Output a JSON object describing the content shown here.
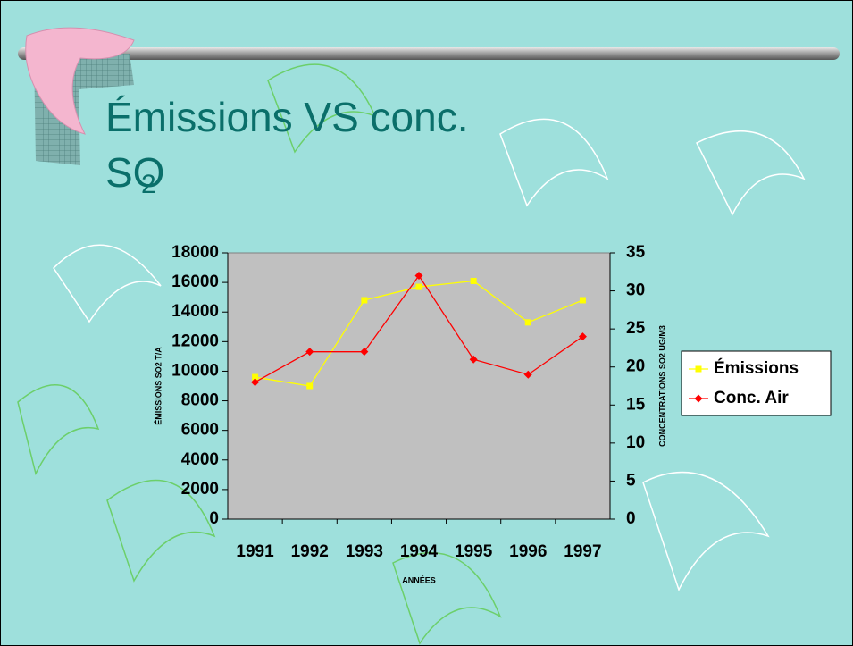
{
  "chart_data": {
    "type": "line",
    "title": "Émissions VS conc. SO",
    "title_subscript": "2",
    "x_label": "ANNÉES",
    "y_label": "ÉMISSIONS SO2  T/A",
    "y2_label": "CONCENTRATIONS SO2  UG/M3",
    "categories": [
      "1991",
      "1992",
      "1993",
      "1994",
      "1995",
      "1996",
      "1997"
    ],
    "series": [
      {
        "name": "Émissions",
        "color": "#ffff00",
        "marker": "square",
        "values": [
          9600,
          9000,
          14800,
          15700,
          16100,
          13300,
          14800
        ]
      },
      {
        "name": "Conc. Air",
        "color": "#ff0000",
        "marker": "diamond",
        "axis": "y2",
        "values": [
          18,
          22,
          22,
          32,
          21,
          19,
          24
        ]
      }
    ],
    "ylim": [
      0,
      18000
    ],
    "yticks": [
      0,
      2000,
      4000,
      6000,
      8000,
      10000,
      12000,
      14000,
      16000,
      18000
    ],
    "y2lim": [
      0,
      35
    ],
    "y2ticks": [
      0,
      5,
      10,
      15,
      20,
      25,
      30,
      35
    ],
    "plot_background": "#c0c0c0",
    "legend": "right"
  }
}
